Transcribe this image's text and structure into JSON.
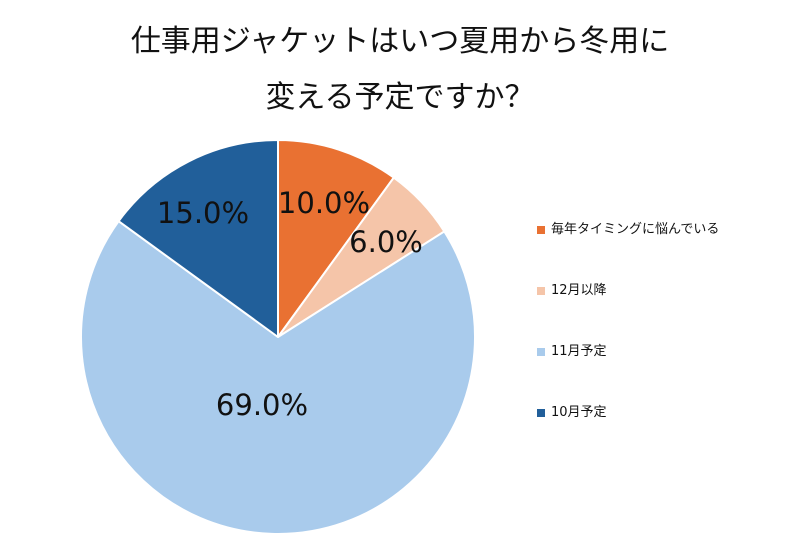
{
  "chart_data": {
    "type": "pie",
    "title_lines": [
      "仕事用ジャケットはいつ夏用から冬用に",
      "変える予定ですか？"
    ],
    "categories": [
      "毎年タイミングに悩んでいる",
      "12月以降",
      "11月予定",
      "10月予定"
    ],
    "values": [
      10.0,
      6.0,
      69.0,
      15.0
    ],
    "value_labels": [
      "10.0%",
      "6.0%",
      "69.0%",
      "15.0%"
    ],
    "colors": [
      "#E97132",
      "#F5C5A9",
      "#A9CBEC",
      "#215F9A"
    ],
    "legend_position": "right",
    "start_angle": "12 o'clock, clockwise"
  }
}
